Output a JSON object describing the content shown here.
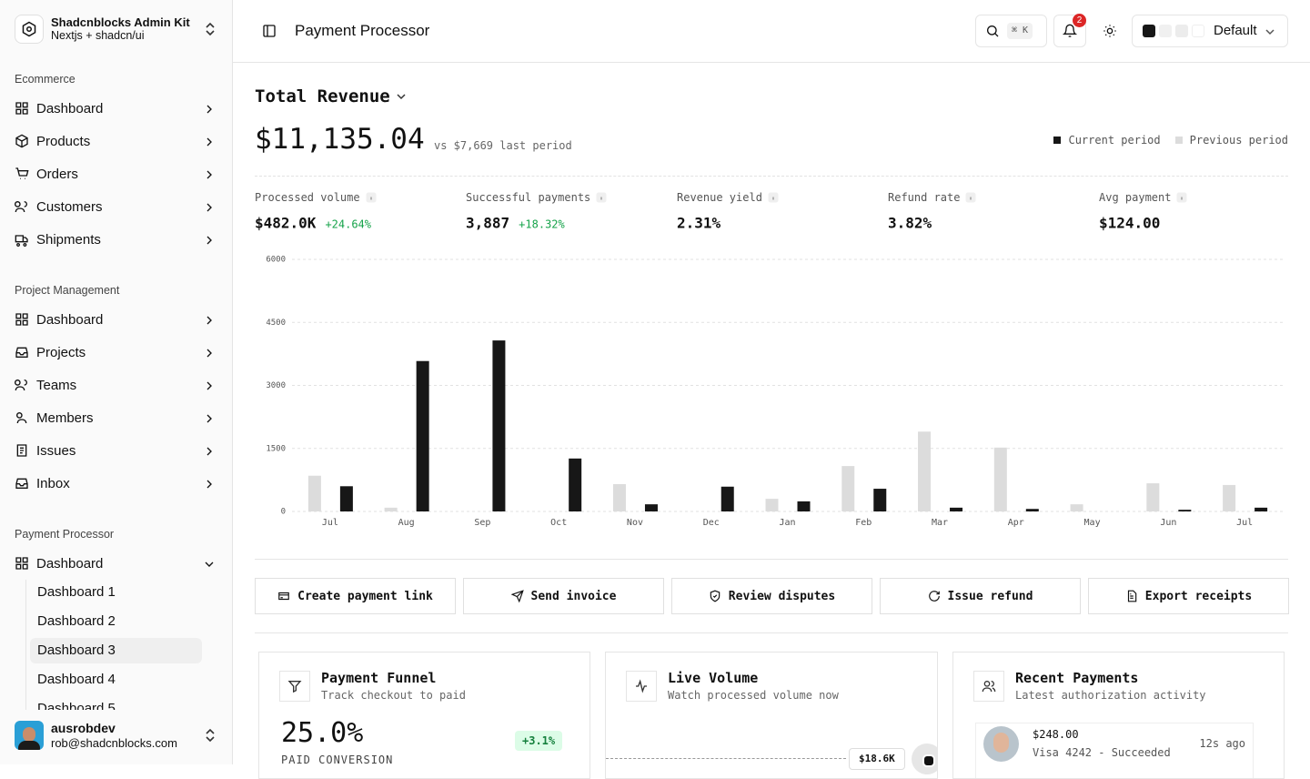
{
  "sidebar": {
    "brand": {
      "title": "Shadcnblocks Admin Kit",
      "subtitle": "Nextjs + shadcn/ui"
    },
    "groups": [
      {
        "label": "Ecommerce",
        "items": [
          "Dashboard",
          "Products",
          "Orders",
          "Customers",
          "Shipments"
        ]
      },
      {
        "label": "Project Management",
        "items": [
          "Dashboard",
          "Projects",
          "Teams",
          "Members",
          "Issues",
          "Inbox"
        ]
      },
      {
        "label": "Payment Processor",
        "items": [
          "Dashboard"
        ],
        "subitems": [
          "Dashboard 1",
          "Dashboard 2",
          "Dashboard 3",
          "Dashboard 4",
          "Dashboard 5"
        ]
      }
    ],
    "user": {
      "name": "ausrobdev",
      "email": "rob@shadcnblocks.com"
    }
  },
  "header": {
    "title": "Payment Processor",
    "shortcut": "⌘ K",
    "notifications": 2,
    "theme": "Default"
  },
  "revenue": {
    "title": "Total Revenue",
    "total": "$11,135.04",
    "comparison": "vs $7,669 last period"
  },
  "metrics": [
    {
      "label": "Processed volume",
      "value": "$482.0K",
      "change": "+24.64%"
    },
    {
      "label": "Successful payments",
      "value": "3,887",
      "change": "+18.32%"
    },
    {
      "label": "Revenue yield",
      "value": "2.31%"
    },
    {
      "label": "Refund rate",
      "value": "3.82%"
    },
    {
      "label": "Avg payment",
      "value": "$124.00"
    }
  ],
  "chart_data": {
    "type": "bar",
    "categories": [
      "Jul",
      "Aug",
      "Sep",
      "Oct",
      "Nov",
      "Dec",
      "Jan",
      "Feb",
      "Mar",
      "Apr",
      "May",
      "Jun",
      "Jul"
    ],
    "series": [
      {
        "name": "Previous period",
        "color": "#dcdcdc",
        "values": [
          850,
          90,
          0,
          0,
          650,
          0,
          300,
          1080,
          1900,
          1520,
          170,
          670,
          630
        ]
      },
      {
        "name": "Current period",
        "color": "#171717",
        "values": [
          600,
          3580,
          4070,
          1260,
          170,
          590,
          240,
          540,
          90,
          60,
          0,
          40,
          90
        ]
      }
    ],
    "ylim": [
      0,
      6000
    ],
    "yticks": [
      0,
      1500,
      3000,
      4500,
      6000
    ],
    "grid": true
  },
  "actions": [
    "Create payment link",
    "Send invoice",
    "Review disputes",
    "Issue refund",
    "Export receipts"
  ],
  "cards": {
    "funnel": {
      "title": "Payment Funnel",
      "subtitle": "Track checkout to paid",
      "value": "25.0%",
      "change": "+3.1%",
      "caption": "PAID CONVERSION"
    },
    "live": {
      "title": "Live Volume",
      "subtitle": "Watch processed volume now",
      "value": "$18.6K"
    },
    "payments": {
      "title": "Recent Payments",
      "subtitle": "Latest authorization activity",
      "items": [
        {
          "amount": "$248.00",
          "detail": "Visa 4242 - Succeeded",
          "time": "12s ago"
        }
      ]
    }
  }
}
